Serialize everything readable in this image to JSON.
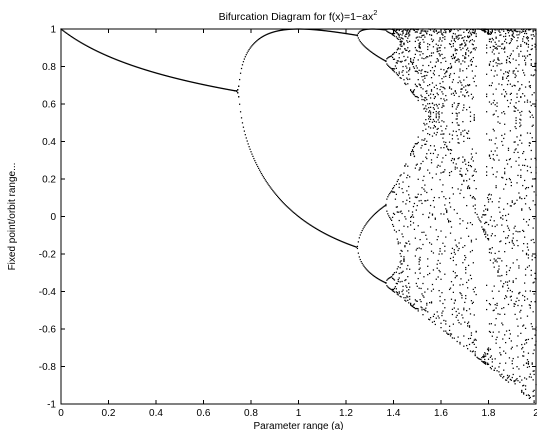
{
  "chart_data": {
    "type": "scatter",
    "title_main": "Bifurcation Diagram for f(x)=1−ax",
    "title_sup": "2",
    "xlabel": "Parameter range (a)",
    "ylabel": "Fixed point/orbit range...",
    "xlim": [
      0,
      2
    ],
    "ylim": [
      -1,
      1
    ],
    "xticks": [
      0,
      0.2,
      0.4,
      0.6,
      0.8,
      1,
      1.2,
      1.4,
      1.6,
      1.8,
      2
    ],
    "yticks": [
      -1,
      -0.8,
      -0.6,
      -0.4,
      -0.2,
      0,
      0.2,
      0.4,
      0.6,
      0.8,
      1
    ],
    "grid": false,
    "point_color": "#000000",
    "series": [
      {
        "map": "x(n+1) = 1 - a*x(n)^2",
        "a_range": [
          0,
          2
        ]
      }
    ]
  }
}
